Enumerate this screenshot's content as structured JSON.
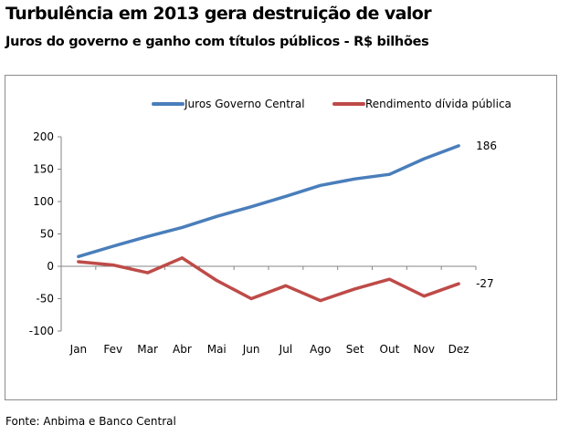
{
  "header": {
    "title": "Turbulência em 2013 gera destruição de valor",
    "subtitle": "Juros do governo e ganho com títulos públicos - R$ bilhões"
  },
  "footer": {
    "source": "Fonte: Anbima e Banco Central"
  },
  "chart_data": {
    "type": "line",
    "title": "Turbulência em 2013 gera destruição de valor",
    "subtitle": "Juros do governo e ganho com títulos públicos - R$ bilhões",
    "xlabel": "",
    "ylabel": "",
    "categories": [
      "Jan",
      "Fev",
      "Mar",
      "Abr",
      "Mai",
      "Jun",
      "Jul",
      "Ago",
      "Set",
      "Out",
      "Nov",
      "Dez"
    ],
    "ylim": [
      -100,
      200
    ],
    "yticks": [
      200,
      150,
      100,
      50,
      0,
      -50,
      -100
    ],
    "grid": false,
    "legend_position": "top-right",
    "series": [
      {
        "name": "Juros Governo Central",
        "color": "#4a7ebb",
        "values": [
          15,
          31,
          46,
          60,
          77,
          92,
          108,
          125,
          135,
          142,
          166,
          186
        ],
        "end_label": "186"
      },
      {
        "name": "Rendimento dívida pública",
        "color": "#be4b48",
        "values": [
          7,
          2,
          -10,
          13,
          -22,
          -50,
          -30,
          -53,
          -35,
          -20,
          -46,
          -27
        ],
        "end_label": "-27"
      }
    ]
  }
}
